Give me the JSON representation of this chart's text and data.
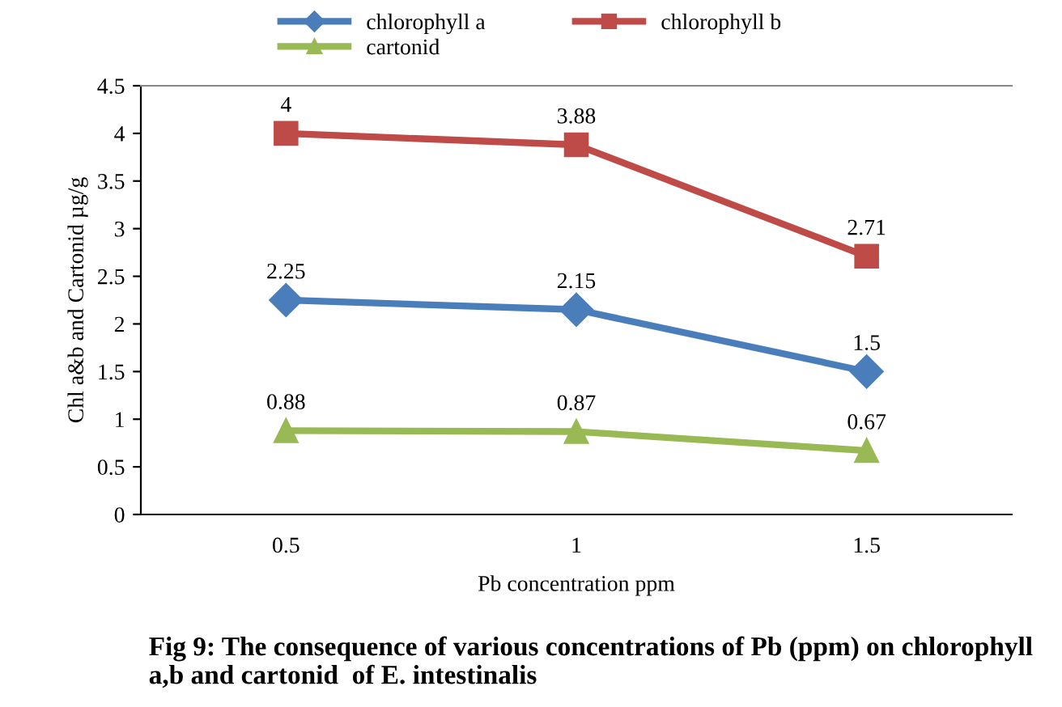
{
  "chart_data": {
    "type": "line",
    "categories": [
      "0.5",
      "1",
      "1.5"
    ],
    "series": [
      {
        "name": "chlorophyll a",
        "color": "#4a7ebb",
        "values": [
          2.25,
          2.15,
          1.5
        ],
        "marker": "diamond"
      },
      {
        "name": "chlorophyll b",
        "color": "#be4b48",
        "values": [
          4,
          3.88,
          2.71
        ],
        "marker": "square"
      },
      {
        "name": "cartonid",
        "color": "#98b954",
        "values": [
          0.88,
          0.87,
          0.67
        ],
        "marker": "triangle"
      }
    ],
    "xlabel": "Pb concentration ppm",
    "ylabel": "Chl a&b and Cartonid µg/g",
    "ylim": [
      0,
      4.5
    ],
    "yticks": [
      0,
      0.5,
      1,
      1.5,
      2,
      2.5,
      3,
      3.5,
      4,
      4.5
    ],
    "grid": false,
    "legend": "top",
    "data_labels": true,
    "annotations": [
      "Fig 9: The consequence of various concentrations of Pb (ppm) on chlorophyll a,b and cartonid  of E. intestinalis"
    ]
  }
}
